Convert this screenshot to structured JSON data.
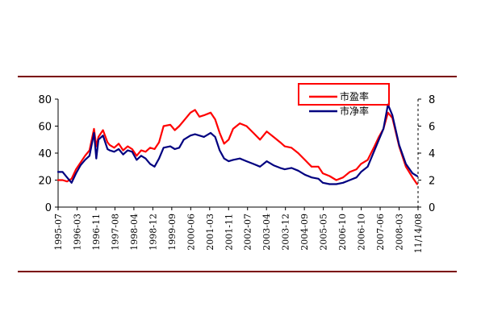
{
  "chart_data": {
    "type": "line",
    "title": "",
    "xlabel": "",
    "ylabel": "",
    "x_tick_labels": [
      "1995-07",
      "1996-03",
      "1996-11",
      "1997-08",
      "1998-04",
      "1998-12",
      "1999-09",
      "2000-06",
      "2001-03",
      "2001-11",
      "2002-07",
      "2003-04",
      "2003-12",
      "2004-09",
      "2005-05",
      "2006-10",
      "2006-10",
      "2007-06",
      "2008-03",
      "11/14/08"
    ],
    "left_axis": {
      "ylim": [
        0,
        80
      ],
      "ticks": [
        "0",
        "20",
        "40",
        "60",
        "80"
      ]
    },
    "right_axis": {
      "ylim": [
        0,
        8
      ],
      "ticks": [
        "0",
        "2",
        "4",
        "6",
        "8"
      ]
    },
    "legend_position": "top-right",
    "series": [
      {
        "name": "市盈率",
        "axis": "left",
        "color": "#ff0000",
        "x": [
          "1995-07",
          "1995-09",
          "1995-11",
          "1996-01",
          "1996-03",
          "1996-05",
          "1996-07",
          "1996-09",
          "1996-11",
          "1996-12",
          "1997-01",
          "1997-03",
          "1997-05",
          "1997-06",
          "1997-08",
          "1997-10",
          "1997-12",
          "1998-02",
          "1998-04",
          "1998-06",
          "1998-08",
          "1998-10",
          "1998-12",
          "1999-02",
          "1999-04",
          "1999-06",
          "1999-09",
          "1999-11",
          "2000-01",
          "2000-03",
          "2000-06",
          "2000-08",
          "2000-10",
          "2000-12",
          "2001-03",
          "2001-05",
          "2001-07",
          "2001-09",
          "2001-11",
          "2002-01",
          "2002-04",
          "2002-07",
          "2002-10",
          "2003-01",
          "2003-04",
          "2003-07",
          "2003-10",
          "2003-12",
          "2004-03",
          "2004-06",
          "2004-09",
          "2004-12",
          "2005-03",
          "2005-05",
          "2005-08",
          "2005-11",
          "2006-02",
          "2006-05",
          "2006-08",
          "2006-10",
          "2007-01",
          "2007-04",
          "2007-06",
          "2007-08",
          "2007-10",
          "2007-12",
          "2008-03",
          "2008-06",
          "2008-09",
          "2008-11"
        ],
        "values": [
          20,
          20,
          19,
          21,
          28,
          33,
          38,
          42,
          58,
          45,
          52,
          57,
          48,
          46,
          44,
          47,
          42,
          45,
          43,
          38,
          42,
          41,
          44,
          43,
          48,
          60,
          61,
          57,
          60,
          64,
          70,
          72,
          67,
          68,
          70,
          65,
          55,
          47,
          50,
          58,
          62,
          60,
          55,
          50,
          56,
          52,
          48,
          45,
          44,
          40,
          35,
          30,
          30,
          25,
          23,
          20,
          22,
          26,
          28,
          32,
          35,
          45,
          52,
          58,
          70,
          66,
          45,
          30,
          22,
          17
        ]
      },
      {
        "name": "市净率",
        "axis": "right",
        "color": "#000080",
        "x": [
          "1995-07",
          "1995-09",
          "1995-11",
          "1996-01",
          "1996-03",
          "1996-05",
          "1996-07",
          "1996-09",
          "1996-11",
          "1996-12",
          "1997-01",
          "1997-03",
          "1997-05",
          "1997-06",
          "1997-08",
          "1997-10",
          "1997-12",
          "1998-02",
          "1998-04",
          "1998-06",
          "1998-08",
          "1998-10",
          "1998-12",
          "1999-02",
          "1999-04",
          "1999-06",
          "1999-09",
          "1999-11",
          "2000-01",
          "2000-03",
          "2000-06",
          "2000-08",
          "2000-10",
          "2000-12",
          "2001-03",
          "2001-05",
          "2001-07",
          "2001-09",
          "2001-11",
          "2002-01",
          "2002-04",
          "2002-07",
          "2002-10",
          "2003-01",
          "2003-04",
          "2003-07",
          "2003-10",
          "2003-12",
          "2004-03",
          "2004-06",
          "2004-09",
          "2004-12",
          "2005-03",
          "2005-05",
          "2005-08",
          "2005-11",
          "2006-02",
          "2006-05",
          "2006-08",
          "2006-10",
          "2007-01",
          "2007-04",
          "2007-06",
          "2007-08",
          "2007-10",
          "2007-12",
          "2008-03",
          "2008-06",
          "2008-09",
          "2008-11"
        ],
        "values": [
          2.6,
          2.6,
          2.2,
          1.8,
          2.5,
          3.1,
          3.5,
          3.8,
          5.5,
          3.6,
          5.0,
          5.3,
          4.3,
          4.2,
          4.1,
          4.3,
          3.9,
          4.2,
          4.1,
          3.5,
          3.8,
          3.6,
          3.2,
          3.0,
          3.6,
          4.4,
          4.5,
          4.3,
          4.4,
          5.0,
          5.3,
          5.4,
          5.3,
          5.2,
          5.5,
          5.2,
          4.2,
          3.6,
          3.4,
          3.5,
          3.6,
          3.4,
          3.2,
          3.0,
          3.4,
          3.1,
          2.9,
          2.8,
          2.9,
          2.7,
          2.4,
          2.2,
          2.1,
          1.8,
          1.7,
          1.7,
          1.8,
          2.0,
          2.2,
          2.6,
          3.0,
          4.2,
          5.0,
          5.8,
          7.6,
          6.8,
          4.6,
          3.2,
          2.5,
          2.3
        ]
      }
    ]
  },
  "colors": {
    "frame_rule": "#7a0000",
    "axis": "#000000",
    "legend_box_border": "#ff0000"
  }
}
